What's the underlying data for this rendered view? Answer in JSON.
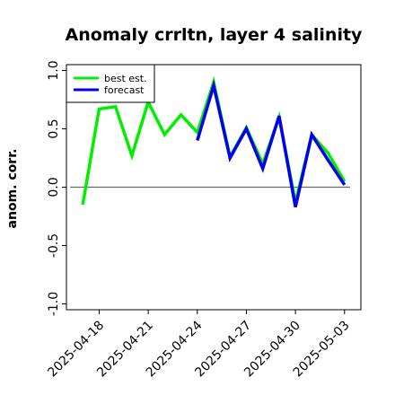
{
  "chart_data": {
    "type": "line",
    "title": "Anomaly crrltn, layer 4 salinity",
    "ylabel": "anom. corr.",
    "xlabel": "",
    "ylim": [
      -1.05,
      1.05
    ],
    "yticks": [
      -1.0,
      -0.5,
      0.0,
      0.5,
      1.0
    ],
    "ytick_labels": [
      "-1.0",
      "-0.5",
      "0.0",
      "0.5",
      "1.0"
    ],
    "xlim": [
      "2025-04-16",
      "2025-05-04"
    ],
    "xticks": [
      "2025-04-18",
      "2025-04-21",
      "2025-04-24",
      "2025-04-27",
      "2025-04-30",
      "2025-05-03"
    ],
    "xtick_labels": [
      "2025-04-18",
      "2025-04-21",
      "2025-04-24",
      "2025-04-27",
      "2025-04-30",
      "2025-05-03"
    ],
    "highlighted_xtick": "2025-04-24",
    "highlight_color": "#228b22",
    "zero_line": true,
    "legend_position": "top-left",
    "series": [
      {
        "name": "best est.",
        "color": "#00ee00",
        "x": [
          "2025-04-17",
          "2025-04-18",
          "2025-04-19",
          "2025-04-20",
          "2025-04-21",
          "2025-04-22",
          "2025-04-23",
          "2025-04-24",
          "2025-04-25",
          "2025-04-26",
          "2025-04-27",
          "2025-04-28",
          "2025-04-29",
          "2025-04-30",
          "2025-05-01",
          "2025-05-02",
          "2025-05-03"
        ],
        "values": [
          -0.15,
          0.67,
          0.69,
          0.27,
          0.73,
          0.45,
          0.62,
          0.47,
          0.9,
          0.26,
          0.51,
          0.2,
          0.6,
          -0.13,
          0.45,
          0.29,
          0.05
        ]
      },
      {
        "name": "forecast",
        "color": "#0000ee",
        "x": [
          "2025-04-24",
          "2025-04-25",
          "2025-04-26",
          "2025-04-27",
          "2025-04-28",
          "2025-04-29",
          "2025-04-30",
          "2025-05-01",
          "2025-05-02",
          "2025-05-03"
        ],
        "values": [
          0.4,
          0.87,
          0.25,
          0.5,
          0.16,
          0.61,
          -0.17,
          0.45,
          0.23,
          0.02
        ]
      }
    ]
  }
}
